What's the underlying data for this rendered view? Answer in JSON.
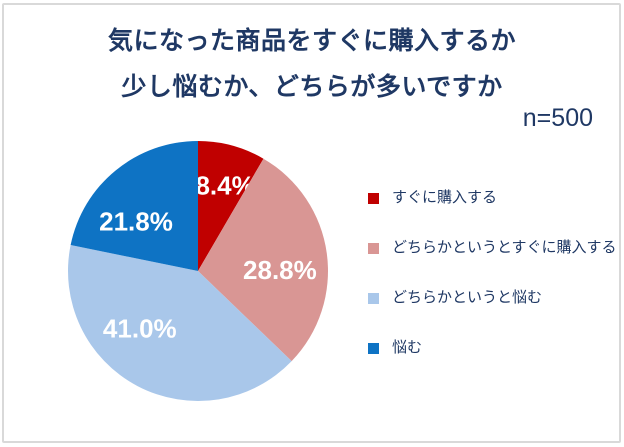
{
  "header": {
    "title_line1": "気になった商品をすぐに購入するか",
    "title_line2": "少し悩むか、どちらが多いですか",
    "sample_size": "n=500"
  },
  "colors": {
    "title_text": "#1F3864",
    "legend_text": "#1F3864",
    "slice_label_text": "#FFFFFF",
    "frame_border": "#D9D9D9"
  },
  "chart_data": {
    "type": "pie",
    "title": "気になった商品をすぐに購入するか 少し悩むか、どちらが多いですか",
    "sample_size_label": "n=500",
    "sample_size": 500,
    "unit": "%",
    "start_angle_deg": 0,
    "direction": "clockwise",
    "legend_position": "right",
    "grid": false,
    "slices": [
      {
        "label": "すぐに購入する",
        "value": 8.4,
        "display": "8.4%",
        "color": "#C00000",
        "label_angle_deg": 17.6,
        "label_radius_frac": 0.69
      },
      {
        "label": "どちらかというとすぐに購入する",
        "value": 28.8,
        "display": "28.8%",
        "color": "#D99694",
        "label_angle_deg": 89.3,
        "label_radius_frac": 0.63
      },
      {
        "label": "どちらかというと悩む",
        "value": 41.0,
        "display": "41.0%",
        "color": "#A9C7EA",
        "label_angle_deg": 225.3,
        "label_radius_frac": 0.63
      },
      {
        "label": "悩む",
        "value": 21.8,
        "display": "21.8%",
        "color": "#0E73C4",
        "label_angle_deg": 308.6,
        "label_radius_frac": 0.61
      }
    ]
  }
}
